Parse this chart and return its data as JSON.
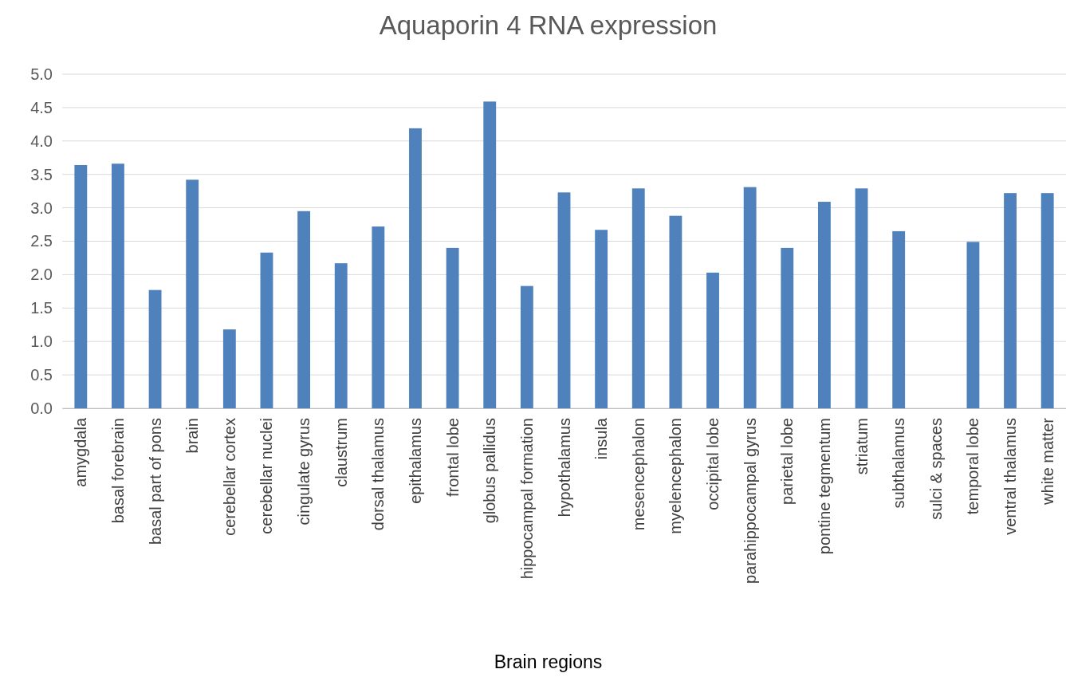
{
  "chart_data": {
    "type": "bar",
    "title": "Aquaporin 4 RNA expression",
    "xlabel": "Brain regions",
    "categories": [
      "amygdala",
      "basal forebrain",
      "basal part of pons",
      "brain",
      "cerebellar cortex",
      "cerebellar nuclei",
      "cingulate gyrus",
      "claustrum",
      "dorsal thalamus",
      "epithalamus",
      "frontal lobe",
      "globus pallidus",
      "hippocampal formation",
      "hypothalamus",
      "insula",
      "mesencephalon",
      "myelencephalon",
      "occipital lobe",
      "parahippocampal gyrus",
      "parietal lobe",
      "pontine tegmentum",
      "striatum",
      "subthalamus",
      "sulci & spaces",
      "temporal lobe",
      "ventral thalamus",
      "white matter"
    ],
    "values": [
      3.64,
      3.66,
      1.77,
      3.42,
      1.18,
      2.33,
      2.95,
      2.17,
      2.72,
      4.19,
      2.4,
      4.59,
      1.83,
      3.23,
      2.67,
      3.29,
      2.88,
      2.03,
      3.31,
      2.4,
      3.09,
      3.29,
      2.65,
      null,
      2.49,
      3.22,
      3.22
    ],
    "color": "#4f81bd",
    "ylim": [
      0,
      5
    ],
    "yticks": [
      {
        "value": 0,
        "label": "0.0"
      },
      {
        "value": 0.5,
        "label": "0.5"
      },
      {
        "value": 1,
        "label": "1.0"
      },
      {
        "value": 1.5,
        "label": "1.5"
      },
      {
        "value": 2,
        "label": "2.0"
      },
      {
        "value": 2.5,
        "label": "2.5"
      },
      {
        "value": 3,
        "label": "3.0"
      },
      {
        "value": 3.5,
        "label": "3.5"
      },
      {
        "value": 4,
        "label": "4.0"
      },
      {
        "value": 4.5,
        "label": "4.5"
      },
      {
        "value": 5,
        "label": "5.0"
      }
    ],
    "grid": "y"
  }
}
